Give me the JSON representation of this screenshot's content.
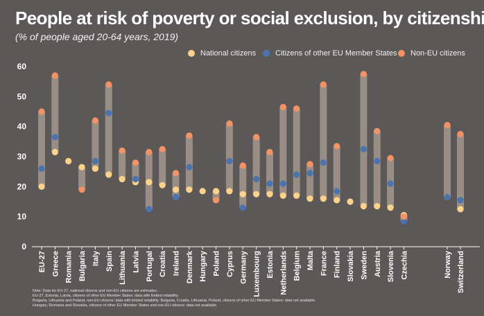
{
  "chart_data": {
    "type": "range-dot",
    "title": "People at risk of poverty or social exclusion, by citizenship",
    "subtitle": "(% of people aged 20-64 years, 2019)",
    "ylim": [
      0,
      60
    ],
    "yticks": [
      0,
      10,
      20,
      30,
      40,
      50,
      60
    ],
    "grid": false,
    "legend_position": "top-right",
    "categories": [
      "EU-27",
      "Greece",
      "Romania",
      "Bulgaria",
      "Italy",
      "Spain",
      "Lithuania",
      "Latvia",
      "Portugal",
      "Croatia",
      "Ireland",
      "Denmark",
      "Hungary",
      "Poland",
      "Cyprus",
      "Germany",
      "Luxembourg",
      "Estonia",
      "Netherlands",
      "Belgium",
      "Malta",
      "France",
      "Finland",
      "Slovakia",
      "Sweden",
      "Austria",
      "Slovenia",
      "Czechia",
      "Norway",
      "Switzerland"
    ],
    "series": [
      {
        "name": "National citizens",
        "color": "#fdd28a",
        "values": [
          20.0,
          31.5,
          28.5,
          26.5,
          26.0,
          24.0,
          22.5,
          21.5,
          21.5,
          20.5,
          19.0,
          19.0,
          18.5,
          18.5,
          18.5,
          17.5,
          17.5,
          17.5,
          17.0,
          17.0,
          16.0,
          16.0,
          15.5,
          15.0,
          13.5,
          13.5,
          13.0,
          10.5,
          16.5,
          12.5
        ]
      },
      {
        "name": "Citizens of other EU Member States",
        "color": "#4b73b0",
        "values": [
          26.0,
          36.5,
          null,
          null,
          28.5,
          44.5,
          null,
          22.5,
          12.5,
          null,
          16.5,
          26.5,
          null,
          null,
          28.5,
          13.0,
          22.5,
          21.0,
          21.0,
          24.0,
          24.5,
          28.0,
          18.5,
          null,
          32.5,
          28.5,
          21.0,
          8.5,
          16.5,
          15.5
        ]
      },
      {
        "name": "Non-EU citizens",
        "color": "#f39264",
        "values": [
          45.0,
          57.0,
          null,
          19.0,
          42.0,
          54.0,
          32.0,
          28.0,
          31.5,
          32.5,
          24.5,
          37.0,
          null,
          15.5,
          41.0,
          27.0,
          36.5,
          31.5,
          46.5,
          46.0,
          27.5,
          54.0,
          33.5,
          null,
          57.5,
          38.5,
          29.5,
          10.0,
          40.5,
          37.5
        ]
      }
    ]
  },
  "notes": [
    "Note: Data for EU-27, national citizens and non-EU citizens are estimates.",
    "EU-27, Estonia, Latvia, citizens of other EU Member States: data with limited reliability.",
    "Bulgaria, Lithuania and Poland, non-EU citizens: data with limited reliability. Bulgaria, Croatia, Lithuania, Poland, citizens of other EU Member States: data not available.",
    "Hungary, Romania and Slovakia, citizens of other EU Member States and non-EU citizens: data not available."
  ]
}
